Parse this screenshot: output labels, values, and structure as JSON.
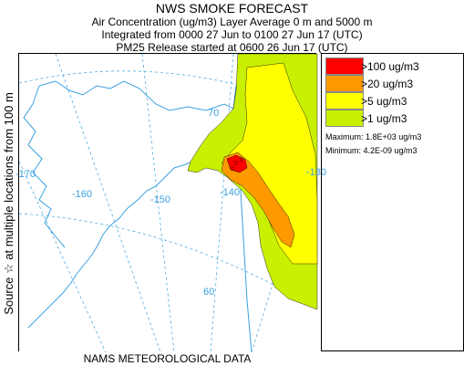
{
  "header": {
    "title": "NWS SMOKE FORECAST",
    "subtitle_1": "Air Concentration (ug/m3) Layer Average    0 m and  5000 m",
    "subtitle_2": "Integrated from 0000 27 Jun to 0100 27 Jun 17 (UTC)",
    "subtitle_3": "PM25 Release started at 0600 26 Jun 17 (UTC)"
  },
  "side_label": {
    "text": "Source ☆ at multiple locations    from  100 m"
  },
  "footer": {
    "text": "NAMS METEOROLOGICAL DATA"
  },
  "map": {
    "graticule_labels": {
      "lon_170": "-170",
      "lon_160": "-160",
      "lon_150": "-150",
      "lon_140": "-140",
      "lon_130": "-130",
      "lat_70": "70",
      "lat_60": "60"
    },
    "colors": {
      "coast": "#3aa0e0",
      "graticule": "#3aa0e0",
      "level_1": "#c8f000",
      "level_5": "#ffff00",
      "level_20": "#ff9900",
      "level_100": "#ff0000",
      "source_marker": "#000000"
    }
  },
  "legend": {
    "items": [
      {
        "label": ">100 ug/m3",
        "color": "#ff0000"
      },
      {
        "label": ">20 ug/m3",
        "color": "#ff9900"
      },
      {
        "label": ">5 ug/m3",
        "color": "#ffff00"
      },
      {
        "label": ">1 ug/m3",
        "color": "#c8f000"
      }
    ],
    "maximum": "Maximum: 1.8E+03 ug/m3",
    "minimum": "Minimum: 4.2E-09 ug/m3"
  }
}
